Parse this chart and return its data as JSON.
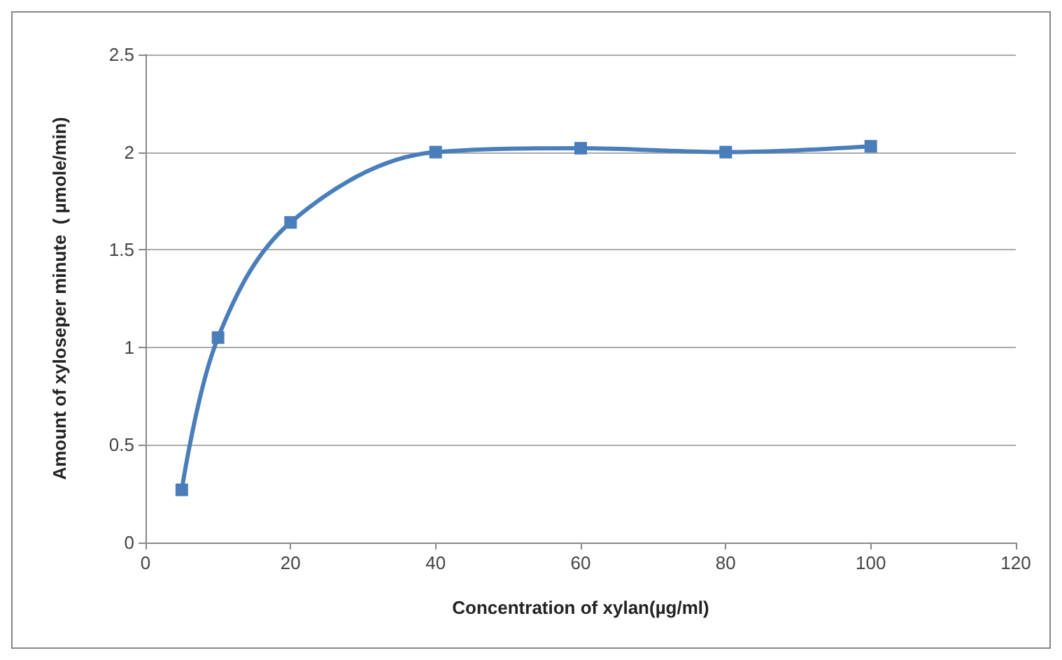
{
  "chart_data": {
    "type": "line",
    "xlabel": "Concentration of xylan(µg/ml)",
    "ylabel": "Amount of xyloseper minute  ( µmole/min)",
    "x": [
      5,
      10,
      20,
      40,
      60,
      80,
      100
    ],
    "series": [
      {
        "color": "#4a7ebb",
        "values": [
          0.27,
          1.05,
          1.64,
          2.0,
          2.02,
          2.0,
          2.03
        ]
      }
    ],
    "xlim": [
      0,
      120
    ],
    "xticks": [
      0,
      20,
      40,
      60,
      80,
      100,
      120
    ],
    "ylim": [
      0,
      2.5
    ],
    "yticks": [
      0,
      0.5,
      1,
      1.5,
      2,
      2.5
    ],
    "grid": "y",
    "marker": "square",
    "line_style": "solid"
  }
}
